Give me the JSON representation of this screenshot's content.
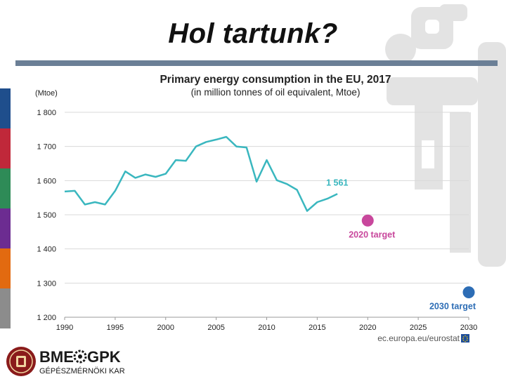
{
  "slide": {
    "title": "Hol tartunk?",
    "accent_colors": [
      "#1f4e8c",
      "#c0283a",
      "#2e8b57",
      "#6c2c91",
      "#e26a10",
      "#8c8c8c"
    ]
  },
  "chart_data": {
    "type": "line",
    "title": "Primary energy consumption in the EU, 2017",
    "subtitle": "(in million tonnes of oil equivalent, Mtoe)",
    "ylabel": "(Mtoe)",
    "xlabel": "",
    "xlim": [
      1990,
      2030
    ],
    "ylim": [
      1200,
      1800
    ],
    "grid": true,
    "x_ticks": [
      "1990",
      "1995",
      "2000",
      "2005",
      "2010",
      "2015",
      "2020",
      "2025",
      "2030"
    ],
    "y_ticks": [
      "1 800",
      "1 700",
      "1 600",
      "1 500",
      "1 400",
      "1 300",
      "1 200"
    ],
    "series": [
      {
        "color": "#3ab7bf",
        "x": [
          1990,
          1991,
          1992,
          1993,
          1994,
          1995,
          1996,
          1997,
          1998,
          1999,
          2000,
          2001,
          2002,
          2003,
          2004,
          2005,
          2006,
          2007,
          2008,
          2009,
          2010,
          2011,
          2012,
          2013,
          2014,
          2015,
          2016,
          2017
        ],
        "y": [
          1568,
          1570,
          1530,
          1537,
          1530,
          1570,
          1627,
          1608,
          1618,
          1611,
          1620,
          1660,
          1658,
          1700,
          1713,
          1720,
          1728,
          1700,
          1697,
          1597,
          1660,
          1601,
          1590,
          1573,
          1511,
          1537,
          1547,
          1561
        ]
      }
    ],
    "annotations": [
      {
        "text": "1 561",
        "x": 2017,
        "y": 1561,
        "color": "#3ab7bf"
      }
    ],
    "targets": [
      {
        "label": "2020 target",
        "x": 2020,
        "y": 1483,
        "color": "#c8479c"
      },
      {
        "label": "2030 target",
        "x": 2030,
        "y": 1273,
        "color": "#2d6db5"
      }
    ],
    "source": "ec.europa.eu/eurostat"
  },
  "logo": {
    "brand_left": "BME",
    "brand_right": "GPK",
    "subtitle": "GÉPÉSZMÉRNÖKI KAR"
  }
}
